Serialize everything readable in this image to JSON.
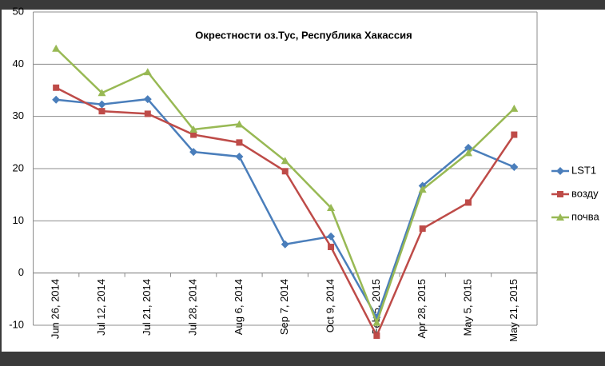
{
  "chart_data": {
    "type": "line",
    "title": "Окрестности оз.Тус, Республика Хакассия",
    "categories": [
      "Jun 26, 2014",
      "Jul 12, 2014",
      "Jul 21, 2014",
      "Jul 28, 2014",
      "Aug 6, 2014",
      "Sep 7, 2014",
      "Oct 9, 2014",
      "Feb 5, 2015",
      "Apr 28, 2015",
      "May 5, 2015",
      "May 21, 2015"
    ],
    "series": [
      {
        "name": "LST1",
        "color": "#4a7ebb",
        "marker": "diamond",
        "values": [
          33.2,
          32.3,
          33.3,
          23.2,
          22.3,
          5.5,
          7.0,
          -8.5,
          16.7,
          24.0,
          20.3
        ]
      },
      {
        "name": "возду",
        "color": "#be4b48",
        "marker": "square",
        "values": [
          35.5,
          31.0,
          30.5,
          26.5,
          25.0,
          19.5,
          5.0,
          -12.0,
          8.5,
          13.5,
          26.5
        ]
      },
      {
        "name": "почва",
        "color": "#98b954",
        "marker": "triangle",
        "values": [
          43.0,
          34.5,
          38.5,
          27.5,
          28.5,
          21.5,
          12.5,
          -9.5,
          16.0,
          23.0,
          31.5
        ]
      }
    ],
    "ylim": [
      -10,
      50
    ],
    "yticks": [
      -10,
      0,
      10,
      20,
      30,
      40,
      50
    ],
    "grid": true,
    "legend": "right"
  }
}
